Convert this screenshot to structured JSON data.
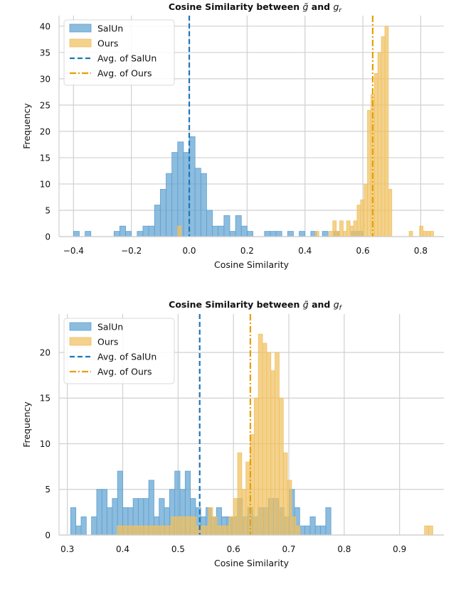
{
  "chart_data": [
    {
      "type": "histogram",
      "title": "Cosine Similarity between g̃ and g_r",
      "title_main": "Cosine Similarity between ",
      "title_sym1": "g̃",
      "title_and": " and ",
      "title_sym2": "g",
      "title_sub": "r",
      "xlabel": "Cosine Similarity",
      "ylabel": "Frequency",
      "xlim": [
        -0.45,
        0.88
      ],
      "ylim": [
        0,
        42
      ],
      "xticks": [
        -0.4,
        -0.2,
        0.0,
        0.2,
        0.4,
        0.6,
        0.8
      ],
      "xtick_labels": [
        "−0.4",
        "−0.2",
        "0.0",
        "0.2",
        "0.4",
        "0.6",
        "0.8"
      ],
      "yticks": [
        0,
        5,
        10,
        15,
        20,
        25,
        30,
        35,
        40
      ],
      "ytick_labels": [
        "0",
        "5",
        "10",
        "15",
        "20",
        "25",
        "30",
        "35",
        "40"
      ],
      "grid": true,
      "legend_position": "top-left",
      "series": [
        {
          "name": "SalUn",
          "color": "#5fa2d1",
          "bin_width": 0.02,
          "bins": [
            [
              -0.4,
              1
            ],
            [
              -0.36,
              1
            ],
            [
              -0.26,
              1
            ],
            [
              -0.24,
              2
            ],
            [
              -0.22,
              1
            ],
            [
              -0.18,
              1
            ],
            [
              -0.16,
              2
            ],
            [
              -0.14,
              2
            ],
            [
              -0.12,
              6
            ],
            [
              -0.1,
              9
            ],
            [
              -0.08,
              12
            ],
            [
              -0.06,
              16
            ],
            [
              -0.04,
              18
            ],
            [
              -0.02,
              16
            ],
            [
              0.0,
              19
            ],
            [
              0.02,
              13
            ],
            [
              0.04,
              12
            ],
            [
              0.06,
              5
            ],
            [
              0.08,
              2
            ],
            [
              0.1,
              2
            ],
            [
              0.12,
              4
            ],
            [
              0.14,
              1
            ],
            [
              0.16,
              4
            ],
            [
              0.18,
              2
            ],
            [
              0.2,
              1
            ],
            [
              0.26,
              1
            ],
            [
              0.28,
              1
            ],
            [
              0.3,
              1
            ],
            [
              0.34,
              1
            ],
            [
              0.38,
              1
            ],
            [
              0.42,
              1
            ],
            [
              0.46,
              1
            ],
            [
              0.5,
              1
            ],
            [
              0.56,
              1
            ],
            [
              0.58,
              1
            ]
          ]
        },
        {
          "name": "Ours",
          "color": "#f0c060",
          "bin_width": 0.012,
          "bins": [
            [
              -0.04,
              2
            ],
            [
              0.436,
              1
            ],
            [
              0.484,
              1
            ],
            [
              0.496,
              3
            ],
            [
              0.508,
              1
            ],
            [
              0.52,
              3
            ],
            [
              0.532,
              1
            ],
            [
              0.544,
              3
            ],
            [
              0.556,
              2
            ],
            [
              0.568,
              3
            ],
            [
              0.58,
              6
            ],
            [
              0.592,
              7
            ],
            [
              0.604,
              10
            ],
            [
              0.616,
              24
            ],
            [
              0.628,
              27
            ],
            [
              0.64,
              31
            ],
            [
              0.652,
              35
            ],
            [
              0.664,
              38
            ],
            [
              0.676,
              40
            ],
            [
              0.688,
              9
            ],
            [
              0.76,
              1
            ],
            [
              0.796,
              2
            ],
            [
              0.808,
              1
            ],
            [
              0.82,
              1
            ],
            [
              0.832,
              1
            ]
          ]
        }
      ],
      "lines": [
        {
          "name": "Avg. of SalUn",
          "x": 0.0,
          "style": "dashed",
          "color": "#1f77b4"
        },
        {
          "name": "Avg. of Ours",
          "x": 0.634,
          "style": "dashdot",
          "color": "#e69f00"
        }
      ]
    },
    {
      "type": "histogram",
      "title": "Cosine Similarity between g̃ and g_f",
      "title_main": "Cosine Similarity between ",
      "title_sym1": "g̃",
      "title_and": " and ",
      "title_sym2": "g",
      "title_sub": "f",
      "xlabel": "Cosine Similarity",
      "ylabel": "Frequency",
      "xlim": [
        0.285,
        0.98
      ],
      "ylim": [
        0,
        24.2
      ],
      "xticks": [
        0.3,
        0.4,
        0.5,
        0.6,
        0.7,
        0.8,
        0.9
      ],
      "xtick_labels": [
        "0.3",
        "0.4",
        "0.5",
        "0.6",
        "0.7",
        "0.8",
        "0.9"
      ],
      "yticks": [
        0,
        5,
        10,
        15,
        20
      ],
      "ytick_labels": [
        "0",
        "5",
        "10",
        "15",
        "20"
      ],
      "grid": true,
      "legend_position": "top-left",
      "series": [
        {
          "name": "SalUn",
          "color": "#5fa2d1",
          "bin_width": 0.0094,
          "bins": [
            [
              0.306,
              3
            ],
            [
              0.3154,
              1
            ],
            [
              0.3248,
              2
            ],
            [
              0.3436,
              2
            ],
            [
              0.353,
              5
            ],
            [
              0.3624,
              5
            ],
            [
              0.3718,
              3
            ],
            [
              0.3812,
              4
            ],
            [
              0.3906,
              7
            ],
            [
              0.4,
              3
            ],
            [
              0.4094,
              3
            ],
            [
              0.4188,
              4
            ],
            [
              0.4282,
              4
            ],
            [
              0.4376,
              4
            ],
            [
              0.447,
              6
            ],
            [
              0.4564,
              2
            ],
            [
              0.4658,
              4
            ],
            [
              0.4752,
              3
            ],
            [
              0.4846,
              5
            ],
            [
              0.494,
              7
            ],
            [
              0.5034,
              5
            ],
            [
              0.5128,
              7
            ],
            [
              0.5222,
              4
            ],
            [
              0.5316,
              3
            ],
            [
              0.541,
              2
            ],
            [
              0.5504,
              3
            ],
            [
              0.5598,
              2
            ],
            [
              0.5692,
              3
            ],
            [
              0.5786,
              2
            ],
            [
              0.588,
              2
            ],
            [
              0.5974,
              2
            ],
            [
              0.6068,
              4
            ],
            [
              0.6162,
              2
            ],
            [
              0.6256,
              3
            ],
            [
              0.635,
              2
            ],
            [
              0.6444,
              3
            ],
            [
              0.6538,
              3
            ],
            [
              0.6632,
              4
            ],
            [
              0.6726,
              4
            ],
            [
              0.682,
              3
            ],
            [
              0.6914,
              2
            ],
            [
              0.7008,
              5
            ],
            [
              0.7102,
              3
            ],
            [
              0.7196,
              1
            ],
            [
              0.729,
              1
            ],
            [
              0.7384,
              2
            ],
            [
              0.7478,
              1
            ],
            [
              0.7572,
              1
            ],
            [
              0.7666,
              3
            ]
          ]
        },
        {
          "name": "Ours",
          "color": "#f0c060",
          "bin_width": 0.0075,
          "bins": [
            [
              0.39,
              1
            ],
            [
              0.3975,
              1
            ],
            [
              0.405,
              1
            ],
            [
              0.4125,
              1
            ],
            [
              0.42,
              1
            ],
            [
              0.4275,
              1
            ],
            [
              0.435,
              1
            ],
            [
              0.4425,
              1
            ],
            [
              0.45,
              1
            ],
            [
              0.4575,
              1
            ],
            [
              0.465,
              1
            ],
            [
              0.4725,
              1
            ],
            [
              0.48,
              1
            ],
            [
              0.4875,
              2
            ],
            [
              0.495,
              2
            ],
            [
              0.5025,
              2
            ],
            [
              0.51,
              2
            ],
            [
              0.5175,
              2
            ],
            [
              0.525,
              2
            ],
            [
              0.5325,
              1
            ],
            [
              0.54,
              1
            ],
            [
              0.5475,
              1
            ],
            [
              0.555,
              3
            ],
            [
              0.5625,
              2
            ],
            [
              0.57,
              1
            ],
            [
              0.5775,
              1
            ],
            [
              0.585,
              1
            ],
            [
              0.5925,
              2
            ],
            [
              0.6,
              4
            ],
            [
              0.6075,
              9
            ],
            [
              0.615,
              5
            ],
            [
              0.6225,
              8
            ],
            [
              0.63,
              11
            ],
            [
              0.6375,
              15
            ],
            [
              0.645,
              22
            ],
            [
              0.6525,
              21
            ],
            [
              0.66,
              20
            ],
            [
              0.6675,
              18
            ],
            [
              0.675,
              20
            ],
            [
              0.6825,
              15
            ],
            [
              0.69,
              9
            ],
            [
              0.6975,
              6
            ],
            [
              0.705,
              2
            ],
            [
              0.7125,
              1
            ],
            [
              0.945,
              1
            ],
            [
              0.9525,
              1
            ]
          ]
        }
      ],
      "lines": [
        {
          "name": "Avg. of SalUn",
          "x": 0.539,
          "style": "dashed",
          "color": "#1f77b4"
        },
        {
          "name": "Avg. of Ours",
          "x": 0.6305,
          "style": "dashdot",
          "color": "#e69f00"
        }
      ]
    }
  ]
}
